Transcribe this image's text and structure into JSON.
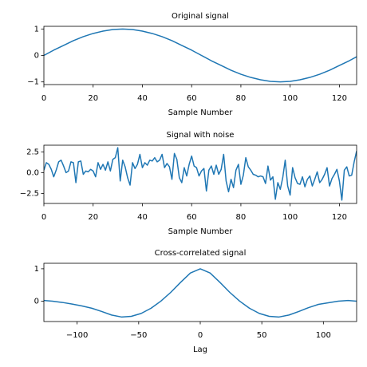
{
  "chart_data": [
    {
      "type": "line",
      "title": "Original signal",
      "x_label": "Sample Number",
      "x": [
        0,
        4,
        8,
        12,
        16,
        20,
        24,
        28,
        32,
        36,
        40,
        44,
        48,
        52,
        56,
        60,
        64,
        68,
        72,
        76,
        80,
        84,
        88,
        92,
        96,
        100,
        104,
        108,
        112,
        116,
        120,
        124,
        127
      ],
      "series": [
        {
          "color": "#1f77b4",
          "values": [
            0,
            0.2,
            0.38,
            0.56,
            0.71,
            0.83,
            0.92,
            0.98,
            1.0,
            0.98,
            0.92,
            0.83,
            0.71,
            0.56,
            0.38,
            0.2,
            0,
            -0.2,
            -0.38,
            -0.56,
            -0.71,
            -0.83,
            -0.92,
            -0.98,
            -1.0,
            -0.98,
            -0.92,
            -0.83,
            -0.71,
            -0.56,
            -0.38,
            -0.2,
            -0.05
          ]
        }
      ],
      "xlim": [
        0,
        127
      ],
      "xticks": [
        0,
        20,
        40,
        60,
        80,
        100,
        120
      ],
      "ylim": [
        -1.1,
        1.1
      ],
      "yticks": [
        {
          "value": -1,
          "label": "−1"
        },
        0,
        1
      ],
      "grid": false
    },
    {
      "type": "line",
      "title": "Signal with noise",
      "x_label": "Sample Number",
      "x": [
        0,
        1,
        2,
        3,
        4,
        5,
        6,
        7,
        8,
        9,
        10,
        11,
        12,
        13,
        14,
        15,
        16,
        17,
        18,
        19,
        20,
        21,
        22,
        23,
        24,
        25,
        26,
        27,
        28,
        29,
        30,
        31,
        32,
        33,
        34,
        35,
        36,
        37,
        38,
        39,
        40,
        41,
        42,
        43,
        44,
        45,
        46,
        47,
        48,
        49,
        50,
        51,
        52,
        53,
        54,
        55,
        56,
        57,
        58,
        59,
        60,
        61,
        62,
        63,
        64,
        65,
        66,
        67,
        68,
        69,
        70,
        71,
        72,
        73,
        74,
        75,
        76,
        77,
        78,
        79,
        80,
        81,
        82,
        83,
        84,
        85,
        86,
        87,
        88,
        89,
        90,
        91,
        92,
        93,
        94,
        95,
        96,
        97,
        98,
        99,
        100,
        101,
        102,
        103,
        104,
        105,
        106,
        107,
        108,
        109,
        110,
        111,
        112,
        113,
        114,
        115,
        116,
        117,
        118,
        119,
        120,
        121,
        122,
        123,
        124,
        125,
        126,
        127
      ],
      "series": [
        {
          "color": "#1f77b4",
          "values": [
            0.3,
            1.2,
            1.0,
            0.4,
            -0.5,
            0.3,
            1.3,
            1.5,
            0.8,
            0.0,
            0.2,
            1.3,
            1.2,
            -1.2,
            1.3,
            1.4,
            -0.2,
            0.2,
            0.1,
            0.4,
            0.2,
            -0.5,
            1.2,
            0.4,
            1.0,
            0.3,
            1.3,
            0.2,
            1.6,
            1.8,
            3.0,
            -1.0,
            1.5,
            0.7,
            -0.6,
            -1.5,
            1.2,
            0.5,
            1.0,
            2.2,
            0.6,
            1.2,
            0.9,
            1.5,
            1.4,
            1.8,
            1.3,
            1.5,
            2.2,
            0.6,
            1.1,
            0.7,
            -0.8,
            2.3,
            1.6,
            -0.6,
            -1.2,
            0.6,
            -0.4,
            1.0,
            2.0,
            0.8,
            0.6,
            -0.4,
            0.2,
            0.5,
            -2.2,
            0.3,
            0.8,
            -0.2,
            0.9,
            -0.2,
            0.4,
            2.2,
            -1.0,
            -2.3,
            -0.8,
            -1.8,
            0.3,
            1.0,
            -1.4,
            -0.3,
            1.8,
            0.7,
            0.3,
            -0.2,
            -0.3,
            -0.5,
            -0.4,
            -0.5,
            -1.3,
            0.8,
            -0.9,
            -0.5,
            -3.2,
            -1.2,
            -2.0,
            -0.6,
            1.5,
            -1.6,
            -2.7,
            0.6,
            -0.6,
            -1.3,
            -1.4,
            -0.5,
            -1.7,
            -0.8,
            -0.4,
            -1.6,
            -0.8,
            0.1,
            -1.2,
            -0.8,
            -0.2,
            0.6,
            -1.6,
            -0.7,
            -0.2,
            0.4,
            -1.0,
            -3.3,
            0.3,
            0.7,
            -0.4,
            -0.3,
            1.3,
            2.6
          ]
        }
      ],
      "xlim": [
        0,
        127
      ],
      "xticks": [
        0,
        20,
        40,
        60,
        80,
        100,
        120
      ],
      "ylim": [
        -3.7,
        3.3
      ],
      "yticks": [
        {
          "value": -2.5,
          "label": "−2.5"
        },
        {
          "value": 0,
          "label": "0.0"
        },
        2.5
      ],
      "grid": false
    },
    {
      "type": "line",
      "title": "Cross-correlated signal",
      "x_label": "Lag",
      "x": [
        -127,
        -120,
        -112,
        -104,
        -96,
        -88,
        -80,
        -72,
        -64,
        -56,
        -48,
        -40,
        -32,
        -24,
        -16,
        -8,
        0,
        8,
        16,
        24,
        32,
        40,
        48,
        56,
        64,
        72,
        80,
        88,
        96,
        104,
        112,
        120,
        127
      ],
      "series": [
        {
          "color": "#1f77b4",
          "values": [
            0.02,
            0.0,
            -0.04,
            -0.09,
            -0.15,
            -0.22,
            -0.32,
            -0.43,
            -0.49,
            -0.47,
            -0.38,
            -0.22,
            0.0,
            0.27,
            0.58,
            0.87,
            1.0,
            0.87,
            0.58,
            0.27,
            0.0,
            -0.22,
            -0.38,
            -0.47,
            -0.49,
            -0.43,
            -0.32,
            -0.2,
            -0.1,
            -0.05,
            0.0,
            0.02,
            0.0
          ]
        }
      ],
      "xlim": [
        -127,
        127
      ],
      "xticks": [
        {
          "value": -100,
          "label": "−100"
        },
        {
          "value": -50,
          "label": "−50"
        },
        0,
        50,
        100
      ],
      "ylim": [
        -0.63,
        1.17
      ],
      "yticks": [
        0,
        1
      ],
      "grid": false
    }
  ]
}
